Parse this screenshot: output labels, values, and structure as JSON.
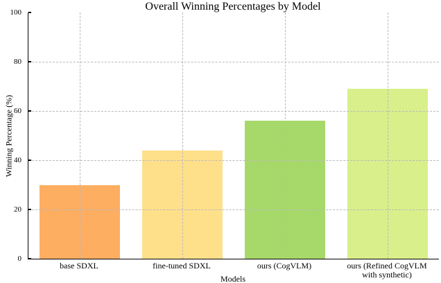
{
  "chart_data": {
    "type": "bar",
    "title": "Overall Winning Percentages by Model",
    "xlabel": "Models",
    "ylabel": "Winning Percentage (%)",
    "categories": [
      "base SDXL",
      "fine-tuned SDXL",
      "ours (CogVLM)",
      "ours (Refined CogVLM\nwith synthetic)"
    ],
    "values": [
      30,
      44,
      56,
      69
    ],
    "bar_colors": [
      "#fdae61",
      "#fee08b",
      "#a6d96a",
      "#d9ef8b"
    ],
    "ylim": [
      0,
      100
    ],
    "yticks": [
      0,
      20,
      40,
      60,
      80,
      100
    ],
    "grid": "dashed horizontal lines at y ticks and dashed vertical lines at bar centers, drawn above bars",
    "legend_position": "none"
  },
  "style": {
    "grid_color": "#b9b9b9",
    "axis_color": "#000000",
    "background_color": "#ffffff",
    "text_color": "#000000"
  }
}
